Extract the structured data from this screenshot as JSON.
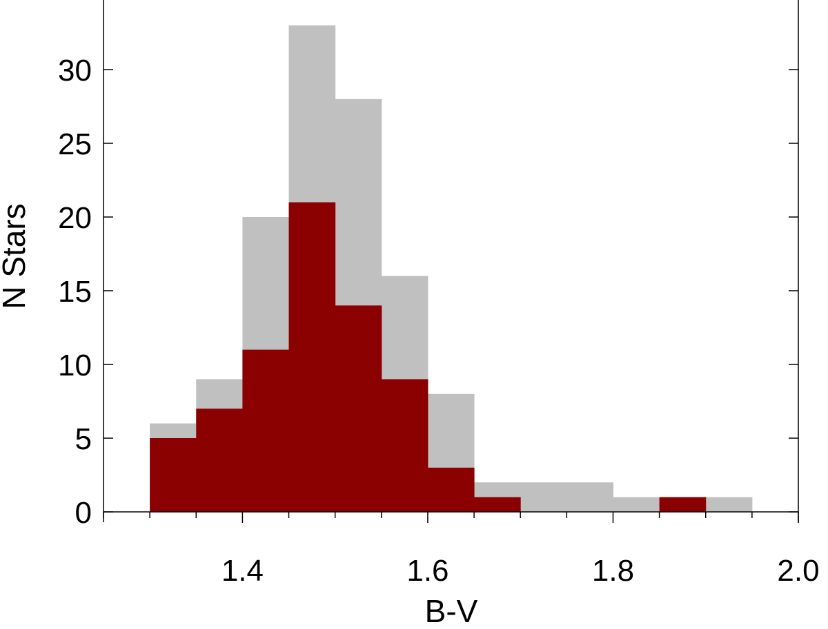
{
  "chart_data": {
    "type": "bar",
    "xlabel": "B-V",
    "ylabel": "N Stars",
    "xlim": [
      1.25,
      2.0
    ],
    "ylim": [
      0,
      33
    ],
    "bin_edges": [
      1.3,
      1.35,
      1.4,
      1.45,
      1.5,
      1.55,
      1.6,
      1.65,
      1.7,
      1.75,
      1.8,
      1.85,
      1.9,
      1.95
    ],
    "series": [
      {
        "values": [
          6,
          9,
          20,
          33,
          28,
          16,
          8,
          2,
          2,
          2,
          1,
          1,
          1
        ],
        "color": "#c0c0c0"
      },
      {
        "values": [
          5,
          7,
          11,
          21,
          14,
          9,
          3,
          1,
          0,
          0,
          0,
          1,
          0
        ],
        "color": "#8b0000"
      }
    ],
    "x_ticks": [
      {
        "value": 1.4,
        "label": "1.4"
      },
      {
        "value": 1.6,
        "label": "1.6"
      },
      {
        "value": 1.8,
        "label": "1.8"
      },
      {
        "value": 2.0,
        "label": "2.0"
      }
    ],
    "y_ticks": [
      {
        "value": 0,
        "label": "0"
      },
      {
        "value": 5,
        "label": "5"
      },
      {
        "value": 10,
        "label": "10"
      },
      {
        "value": 15,
        "label": "15"
      },
      {
        "value": 20,
        "label": "20"
      },
      {
        "value": 25,
        "label": "25"
      },
      {
        "value": 30,
        "label": "30"
      }
    ],
    "grid": false,
    "legend": "none"
  }
}
